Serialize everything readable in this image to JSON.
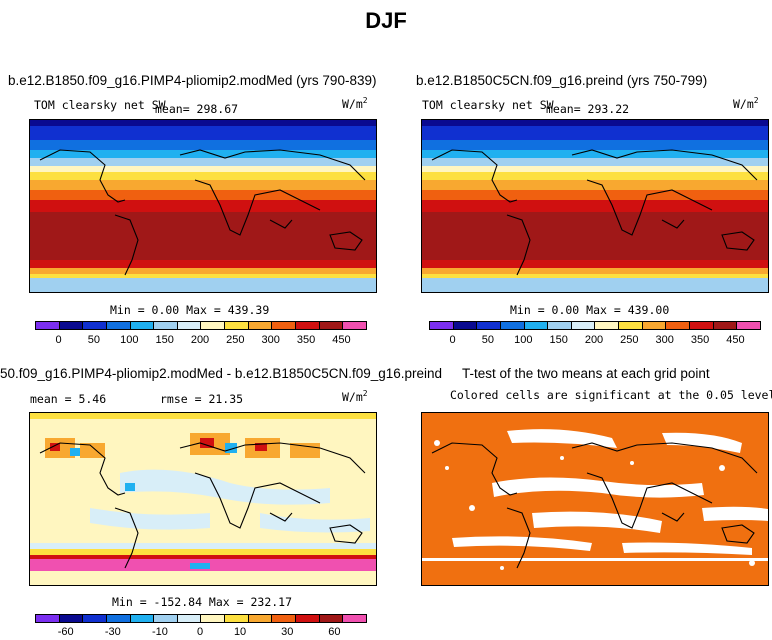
{
  "figure_title": "DJF",
  "colors": {
    "sw_palette": [
      "#7b2ff0",
      "#0a0a90",
      "#1030d0",
      "#1070e0",
      "#20b0f0",
      "#a0d0f0",
      "#d8eef8",
      "#fff6c0",
      "#fde040",
      "#f8a830",
      "#f06010",
      "#d01010",
      "#a01818",
      "#f050b0"
    ],
    "diff_palette": [
      "#7b2ff0",
      "#0a0a90",
      "#1030d0",
      "#1070e0",
      "#20b0f0",
      "#a0d0f0",
      "#d8eef8",
      "#fff6c0",
      "#fde040",
      "#f8a830",
      "#f06010",
      "#d01010",
      "#a01818",
      "#f050b0"
    ],
    "significant": "#f07010",
    "not_significant": "#ffffff"
  },
  "chart_data": [
    {
      "type": "heatmap",
      "title": "b.e12.B1850.f09_g16.PIMP4-pliomip2.modMed (yrs 790-839)",
      "variable": "TOM clearsky net SW",
      "mean_label": "mean= 298.67",
      "units": "W/m",
      "units_exp": "2",
      "stats": "Min =    0.00 Max = 439.39",
      "colorbar_ticks": [
        "0",
        "50",
        "100",
        "150",
        "200",
        "250",
        "300",
        "350",
        "450"
      ],
      "colorbar_min": 0,
      "colorbar_max": 500,
      "min": 0.0,
      "max": 439.39,
      "mean": 298.67
    },
    {
      "type": "heatmap",
      "title": "b.e12.B1850C5CN.f09_g16.preind (yrs 750-799)",
      "variable": "TOM clearsky net SW",
      "mean_label": "mean= 293.22",
      "units": "W/m",
      "units_exp": "2",
      "stats": "Min =    0.00 Max = 439.00",
      "colorbar_ticks": [
        "0",
        "50",
        "100",
        "150",
        "200",
        "250",
        "300",
        "350",
        "450"
      ],
      "colorbar_min": 0,
      "colorbar_max": 500,
      "min": 0.0,
      "max": 439.0,
      "mean": 293.22
    },
    {
      "type": "heatmap",
      "title": "50.f09_g16.PIMP4-pliomip2.modMed - b.e12.B1850C5CN.f09_g16.preind",
      "mean_label": "mean =   5.46",
      "rmse_label": "rmse =  21.35",
      "units": "W/m",
      "units_exp": "2",
      "stats": "Min = -152.84 Max = 232.17",
      "colorbar_ticks": [
        "-60",
        "-30",
        "-10",
        "0",
        "10",
        "30",
        "60"
      ],
      "min": -152.84,
      "max": 232.17,
      "mean": 5.46,
      "rmse": 21.35
    },
    {
      "type": "heatmap",
      "title": "T-test of the two means at each grid point",
      "subtitle": "Colored cells are significant at the 0.05 level"
    }
  ]
}
